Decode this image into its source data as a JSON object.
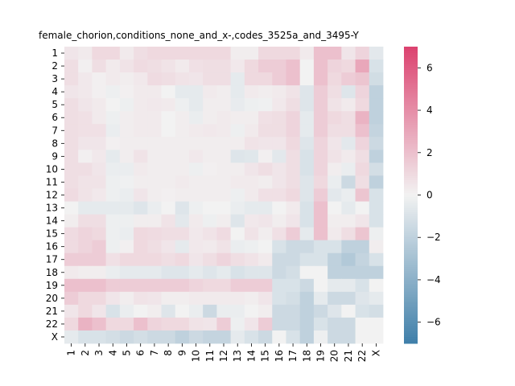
{
  "chart_data": {
    "type": "heatmap",
    "title": "female_chorion,conditions_none_and_x-,codes_3525a_and_3495-Y",
    "xlabel": "",
    "ylabel": "",
    "rows": [
      "1",
      "2",
      "3",
      "4",
      "5",
      "6",
      "7",
      "8",
      "9",
      "10",
      "11",
      "12",
      "13",
      "14",
      "15",
      "16",
      "17",
      "18",
      "19",
      "20",
      "21",
      "22",
      "X"
    ],
    "cols": [
      "1",
      "2",
      "3",
      "4",
      "5",
      "6",
      "7",
      "8",
      "9",
      "10",
      "11",
      "12",
      "13",
      "14",
      "15",
      "16",
      "17",
      "18",
      "19",
      "20",
      "21",
      "22",
      "X"
    ],
    "colorbar": {
      "min": -7,
      "max": 7,
      "ticks": [
        -6,
        -4,
        -2,
        0,
        2,
        4,
        6
      ],
      "low_color": "#3f7fa9",
      "mid_color": "#f2f2f2",
      "high_color": "#dc426f"
    },
    "values": [
      [
        0.5,
        0.3,
        1.0,
        1.0,
        0.3,
        0.8,
        1.0,
        1.0,
        1.0,
        1.0,
        1.0,
        1.0,
        0.2,
        0.2,
        1.0,
        1.0,
        1.0,
        0.3,
        2.0,
        2.0,
        0.5,
        1.2,
        -0.6
      ],
      [
        0.8,
        0.1,
        0.8,
        0.3,
        0.6,
        0.9,
        0.8,
        0.6,
        0.3,
        0.7,
        0.8,
        0.8,
        0.4,
        1.0,
        1.5,
        1.5,
        2.0,
        0.0,
        2.0,
        1.2,
        1.0,
        3.0,
        -1.0
      ],
      [
        0.8,
        0.4,
        0.1,
        0.3,
        0.2,
        0.4,
        0.9,
        0.8,
        0.6,
        0.5,
        0.8,
        0.8,
        -0.5,
        1.0,
        1.0,
        1.5,
        2.0,
        0.0,
        2.0,
        1.0,
        1.5,
        1.8,
        -1.3
      ],
      [
        0.5,
        0.4,
        0.1,
        -0.2,
        0.1,
        0.3,
        0.3,
        0.0,
        -0.5,
        -0.5,
        0.3,
        0.2,
        -0.5,
        0.3,
        0.2,
        0.3,
        0.6,
        -0.8,
        1.5,
        0.8,
        -0.8,
        1.2,
        -2.0
      ],
      [
        0.8,
        0.5,
        0.3,
        0.0,
        -0.2,
        0.3,
        0.4,
        0.3,
        -0.2,
        -0.5,
        0.2,
        0.2,
        -0.4,
        -0.2,
        -0.1,
        0.4,
        0.8,
        -0.8,
        1.5,
        0.6,
        0.3,
        1.0,
        -2.0
      ],
      [
        0.8,
        0.7,
        0.3,
        -0.2,
        0.2,
        0.3,
        0.3,
        0.0,
        0.2,
        -0.3,
        0.2,
        0.3,
        0.2,
        0.2,
        0.7,
        0.8,
        1.2,
        -0.5,
        1.5,
        1.0,
        0.8,
        2.5,
        -2.0
      ],
      [
        0.8,
        0.7,
        0.7,
        -0.3,
        0.2,
        0.3,
        0.3,
        0.0,
        0.2,
        0.3,
        0.4,
        0.3,
        -0.2,
        0.3,
        0.8,
        0.8,
        1.2,
        -0.5,
        1.5,
        0.8,
        0.8,
        2.0,
        -1.8
      ],
      [
        0.8,
        0.5,
        0.5,
        0.1,
        0.2,
        0.2,
        0.2,
        0.2,
        0.2,
        0.2,
        0.2,
        0.2,
        0.2,
        0.6,
        0.5,
        0.5,
        1.0,
        -0.8,
        1.2,
        0.5,
        -0.6,
        1.2,
        -1.5
      ],
      [
        0.8,
        0.1,
        0.4,
        -0.5,
        0.2,
        0.6,
        0.2,
        0.2,
        0.2,
        0.4,
        0.2,
        0.2,
        -0.8,
        -0.7,
        0.1,
        -0.6,
        0.8,
        -1.0,
        1.2,
        0.6,
        0.3,
        0.8,
        -2.0
      ],
      [
        0.8,
        0.8,
        0.5,
        -0.3,
        -0.3,
        0.3,
        0.2,
        0.2,
        0.2,
        -0.2,
        0.1,
        0.2,
        0.2,
        0.5,
        0.8,
        0.5,
        0.8,
        -1.0,
        1.2,
        0.2,
        -0.3,
        1.0,
        -1.2
      ],
      [
        0.8,
        0.6,
        0.6,
        -0.2,
        -0.1,
        0.2,
        0.2,
        0.2,
        0.3,
        0.2,
        0.2,
        0.2,
        0.3,
        0.3,
        0.2,
        0.5,
        0.8,
        -0.8,
        1.0,
        -0.3,
        -1.5,
        0.8,
        -2.0
      ],
      [
        0.9,
        0.6,
        0.4,
        -0.2,
        -0.3,
        0.5,
        0.2,
        0.1,
        0.2,
        0.2,
        0.2,
        0.2,
        -0.2,
        0.3,
        0.7,
        0.7,
        1.0,
        -0.8,
        1.5,
        -0.6,
        -0.3,
        1.8,
        -1.0
      ],
      [
        0.0,
        -0.5,
        -0.5,
        -0.5,
        -0.5,
        -0.8,
        -0.3,
        0.0,
        -0.8,
        -0.2,
        0.0,
        0.0,
        -0.3,
        -0.5,
        -0.5,
        0.0,
        0.3,
        -1.0,
        2.0,
        0.0,
        -0.5,
        0.0,
        -1.0
      ],
      [
        0.2,
        0.8,
        0.8,
        -0.2,
        -0.2,
        0.2,
        0.2,
        0.6,
        -0.6,
        0.3,
        -0.2,
        0.2,
        -0.8,
        0.4,
        0.5,
        0.2,
        0.5,
        -1.0,
        2.0,
        0.2,
        0.2,
        0.5,
        -1.0
      ],
      [
        0.9,
        1.2,
        1.0,
        -0.2,
        -0.3,
        1.0,
        0.9,
        0.8,
        0.8,
        0.4,
        0.6,
        0.9,
        0.0,
        0.6,
        0.2,
        0.7,
        1.5,
        -0.5,
        2.0,
        0.3,
        0.8,
        1.8,
        -0.2
      ],
      [
        0.9,
        1.2,
        1.5,
        -0.2,
        0.1,
        1.0,
        0.8,
        0.5,
        -0.5,
        0.4,
        0.3,
        0.6,
        -0.3,
        -0.2,
        0.0,
        -1.0,
        -1.5,
        -1.5,
        -1.0,
        -1.0,
        -2.0,
        -2.0,
        0.2
      ],
      [
        1.5,
        1.5,
        1.5,
        0.7,
        1.0,
        1.0,
        1.0,
        0.8,
        1.0,
        0.5,
        0.8,
        1.2,
        0.8,
        0.6,
        0.3,
        -1.5,
        -1.5,
        -1.0,
        -1.0,
        -2.0,
        -2.5,
        -1.8,
        -1.0
      ],
      [
        0.3,
        0.2,
        0.2,
        -0.3,
        -0.5,
        -0.5,
        -0.5,
        -0.8,
        -0.8,
        -0.5,
        -0.8,
        -0.5,
        -1.0,
        -0.8,
        -0.8,
        -1.5,
        -1.2,
        0.0,
        0.0,
        -2.0,
        -2.0,
        -2.0,
        -2.0
      ],
      [
        2.0,
        2.0,
        2.0,
        1.5,
        1.5,
        1.5,
        1.5,
        1.5,
        1.5,
        1.2,
        1.0,
        1.0,
        1.5,
        1.5,
        1.5,
        -1.0,
        -1.0,
        -1.5,
        0.0,
        -0.5,
        -0.5,
        -1.0,
        0.0
      ],
      [
        1.5,
        1.0,
        1.0,
        0.5,
        0.2,
        0.6,
        0.5,
        0.2,
        0.2,
        0.3,
        0.3,
        0.3,
        0.3,
        0.2,
        0.5,
        -1.0,
        -1.2,
        -2.0,
        -0.5,
        -1.5,
        -1.5,
        -0.8,
        -0.5
      ],
      [
        0.5,
        1.0,
        0.5,
        -1.0,
        -0.3,
        0.0,
        0.2,
        -0.8,
        0.0,
        -0.3,
        -1.5,
        -0.3,
        -0.3,
        0.0,
        0.2,
        -1.5,
        -1.5,
        -2.0,
        -1.5,
        -0.8,
        0.0,
        -1.0,
        -1.2
      ],
      [
        1.0,
        2.5,
        2.0,
        1.0,
        1.0,
        2.0,
        1.2,
        1.0,
        1.0,
        0.6,
        0.5,
        1.5,
        -0.2,
        0.5,
        1.5,
        -1.5,
        -1.5,
        -2.0,
        -1.0,
        -1.5,
        -1.5,
        0.0,
        0.0
      ],
      [
        -0.5,
        -1.0,
        -1.0,
        -1.2,
        -1.5,
        -1.2,
        -1.5,
        -1.5,
        -2.0,
        -1.5,
        -1.8,
        -1.8,
        -0.5,
        -1.0,
        -1.5,
        0.0,
        -1.0,
        -2.0,
        -0.2,
        -1.5,
        -1.5,
        0.0,
        0.0
      ]
    ]
  }
}
